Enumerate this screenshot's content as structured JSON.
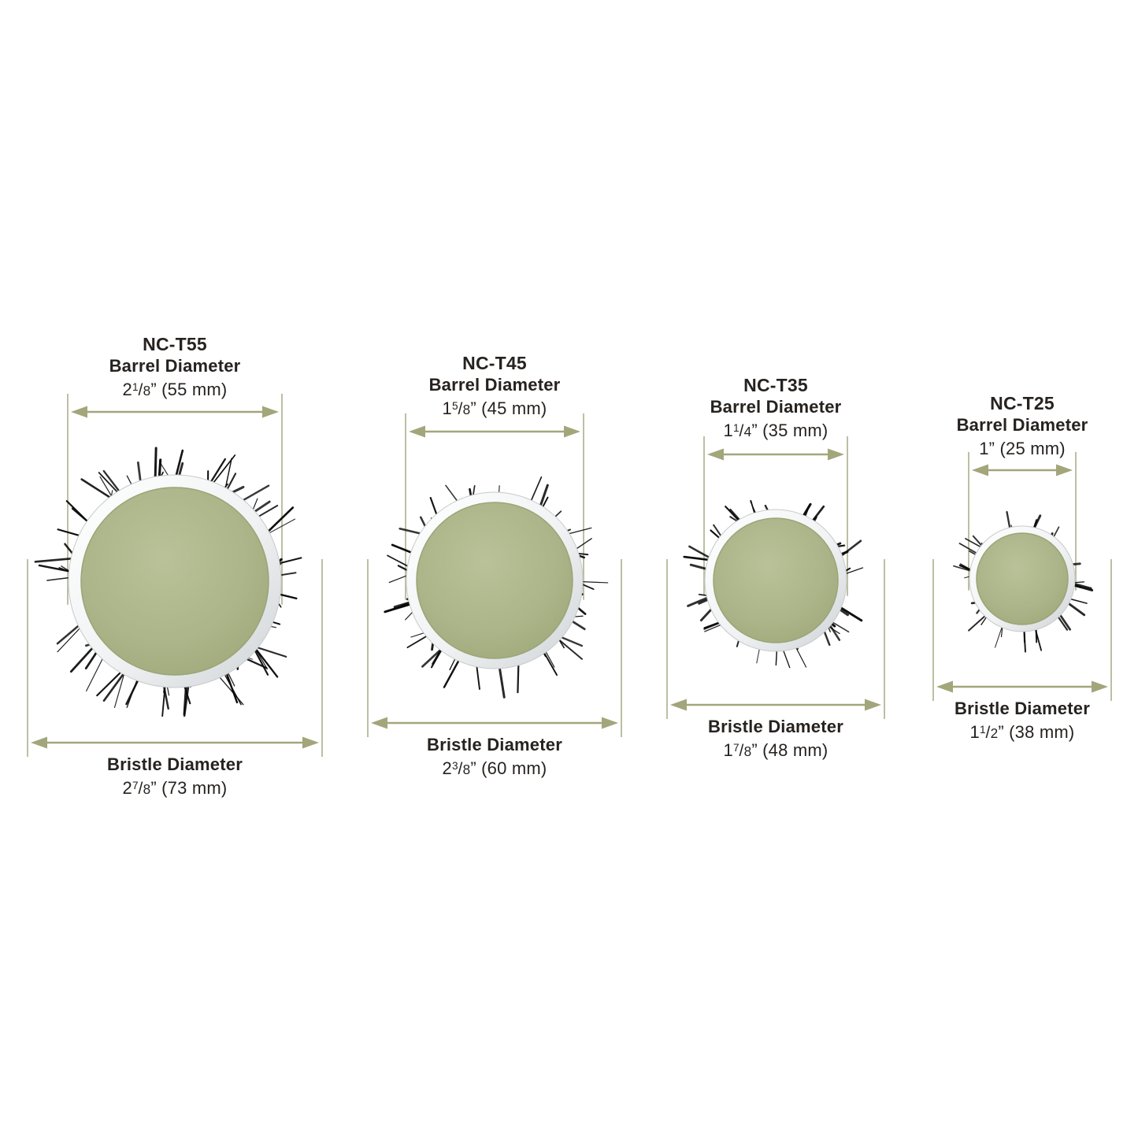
{
  "diagram": {
    "colors": {
      "background": "#ffffff",
      "arrow": "#a3a67a",
      "extension_line": "#bdbfa2",
      "text": "#26221f",
      "barrel_green_light": "#b9c298",
      "barrel_green_mid": "#abb589",
      "barrel_green_dark": "#9da779",
      "ring_light": "#ffffff",
      "ring_dark": "#d6d9db",
      "bristle": "#0a0a0a"
    },
    "brushes": [
      {
        "model": "NC-T55",
        "barrel_label": "Barrel Diameter",
        "barrel_size_whole": "2",
        "barrel_size_num": "1",
        "barrel_size_slash": "/",
        "barrel_size_den": "8",
        "barrel_size_rest": "” (55 mm)",
        "barrel_mm": 55,
        "bristle_label": "Bristle Diameter",
        "bristle_size_whole": "2",
        "bristle_size_num": "7",
        "bristle_size_slash": "/",
        "bristle_size_den": "8",
        "bristle_size_rest": "” (73 mm)",
        "bristle_mm": 73
      },
      {
        "model": "NC-T45",
        "barrel_label": "Barrel Diameter",
        "barrel_size_whole": "1",
        "barrel_size_num": "5",
        "barrel_size_slash": "/",
        "barrel_size_den": "8",
        "barrel_size_rest": "” (45 mm)",
        "barrel_mm": 45,
        "bristle_label": "Bristle Diameter",
        "bristle_size_whole": "2",
        "bristle_size_num": "3",
        "bristle_size_slash": "/",
        "bristle_size_den": "8",
        "bristle_size_rest": "” (60 mm)",
        "bristle_mm": 60
      },
      {
        "model": "NC-T35",
        "barrel_label": "Barrel Diameter",
        "barrel_size_whole": "1",
        "barrel_size_num": "1",
        "barrel_size_slash": "/",
        "barrel_size_den": "4",
        "barrel_size_rest": "” (35 mm)",
        "barrel_mm": 35,
        "bristle_label": "Bristle Diameter",
        "bristle_size_whole": "1",
        "bristle_size_num": "7",
        "bristle_size_slash": "/",
        "bristle_size_den": "8",
        "bristle_size_rest": "” (48 mm)",
        "bristle_mm": 48
      },
      {
        "model": "NC-T25",
        "barrel_label": "Barrel Diameter",
        "barrel_size_whole": "1",
        "barrel_size_num": "",
        "barrel_size_slash": "",
        "barrel_size_den": "",
        "barrel_size_rest": "” (25 mm)",
        "barrel_mm": 25,
        "bristle_label": "Bristle Diameter",
        "bristle_size_whole": "1",
        "bristle_size_num": "1",
        "bristle_size_slash": "/",
        "bristle_size_den": "2",
        "bristle_size_rest": "” (38 mm)",
        "bristle_mm": 38
      }
    ]
  }
}
